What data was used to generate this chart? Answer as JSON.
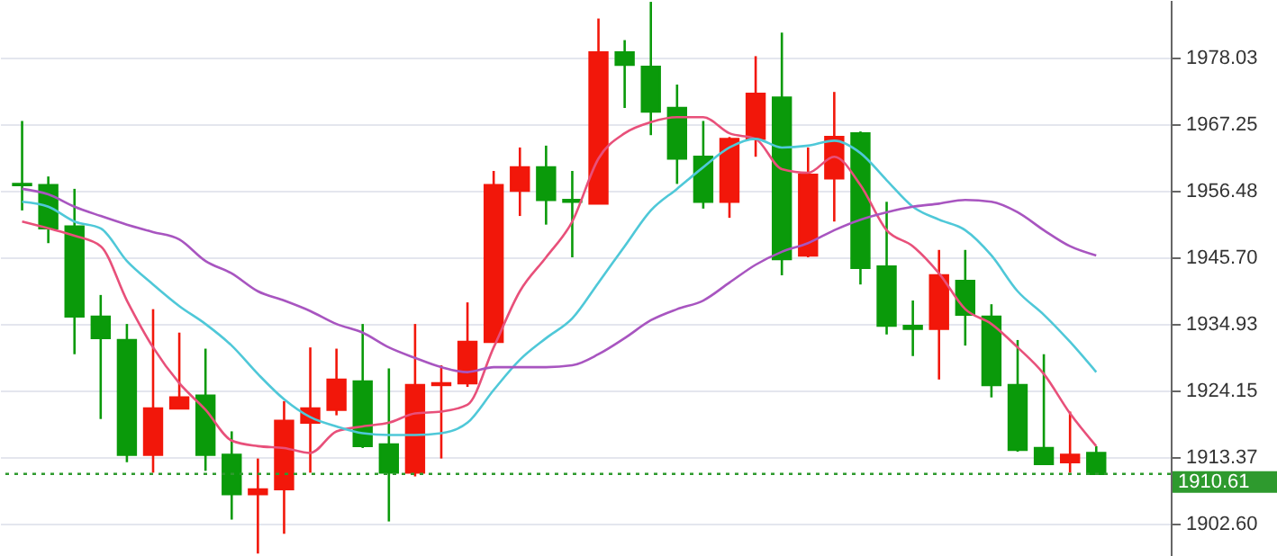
{
  "chart_data": {
    "type": "candlestick",
    "categories": [
      null,
      null,
      null,
      null,
      null,
      null,
      null,
      null,
      null,
      null,
      null,
      null,
      null,
      null,
      null,
      null,
      null,
      null,
      null,
      null,
      null,
      null,
      null,
      null,
      null,
      null,
      null,
      null,
      null,
      null,
      null,
      null,
      null,
      null,
      null,
      null,
      null,
      null,
      null,
      null,
      null,
      null
    ],
    "ohlc": [
      [
        1957.6,
        1967.8,
        1953.3,
        1957.4
      ],
      [
        1957.4,
        1958.8,
        1948.0,
        1950.4
      ],
      [
        1950.7,
        1956.8,
        1930.0,
        1936.1
      ],
      [
        1936.1,
        1939.6,
        1919.5,
        1932.6
      ],
      [
        1932.3,
        1934.9,
        1912.5,
        1913.7
      ],
      [
        1913.7,
        1937.3,
        1910.8,
        1921.2
      ],
      [
        1921.2,
        1933.5,
        1921.2,
        1923.0
      ],
      [
        1923.3,
        1930.9,
        1911.1,
        1913.7
      ],
      [
        1913.7,
        1917.5,
        1903.2,
        1907.3
      ],
      [
        1907.3,
        1913.1,
        1897.7,
        1908.1
      ],
      [
        1908.1,
        1922.4,
        1900.9,
        1919.2
      ],
      [
        1918.9,
        1931.1,
        1910.8,
        1921.2
      ],
      [
        1921.0,
        1930.9,
        1920.1,
        1925.9
      ],
      [
        1925.6,
        1934.9,
        1914.8,
        1915.1
      ],
      [
        1915.4,
        1927.7,
        1902.9,
        1910.8
      ],
      [
        1910.8,
        1934.9,
        1910.2,
        1925.0
      ],
      [
        1925.0,
        1928.2,
        1913.1,
        1925.3
      ],
      [
        1925.3,
        1938.4,
        1924.7,
        1932.0
      ],
      [
        1932.0,
        1959.7,
        1932.0,
        1957.4
      ],
      [
        1956.5,
        1963.5,
        1952.4,
        1960.3
      ],
      [
        1960.3,
        1963.8,
        1951.0,
        1955.0
      ],
      [
        1955.0,
        1959.7,
        1945.7,
        1954.7
      ],
      [
        1954.4,
        1984.4,
        1954.4,
        1978.9
      ],
      [
        1978.9,
        1980.9,
        1969.9,
        1976.9
      ],
      [
        1976.6,
        1987.1,
        1965.5,
        1969.3
      ],
      [
        1969.9,
        1973.7,
        1957.6,
        1961.7
      ],
      [
        1962.0,
        1967.8,
        1953.6,
        1954.7
      ],
      [
        1954.7,
        1965.2,
        1952.1,
        1964.9
      ],
      [
        1964.9,
        1978.3,
        1962.0,
        1972.2
      ],
      [
        1971.6,
        1982.1,
        1942.8,
        1945.4
      ],
      [
        1946.0,
        1963.5,
        1945.7,
        1959.1
      ],
      [
        1958.5,
        1972.5,
        1951.5,
        1965.2
      ],
      [
        1965.8,
        1966.1,
        1941.3,
        1944.0
      ],
      [
        1944.2,
        1954.7,
        1933.2,
        1934.6
      ],
      [
        1934.6,
        1938.7,
        1929.7,
        1934.1
      ],
      [
        1934.1,
        1946.9,
        1925.9,
        1942.8
      ],
      [
        1941.9,
        1946.9,
        1931.4,
        1936.4
      ],
      [
        1936.1,
        1938.1,
        1923.0,
        1925.0
      ],
      [
        1925.0,
        1932.3,
        1914.2,
        1914.5
      ],
      [
        1914.8,
        1930.0,
        1912.2,
        1912.2
      ],
      [
        1912.5,
        1920.7,
        1910.8,
        1913.7
      ],
      [
        1914.0,
        1915.1,
        1910.6,
        1910.61
      ]
    ],
    "colors": [
      "#0a9a0a",
      "#0a9a0a",
      "#0a9a0a",
      "#0a9a0a",
      "#0a9a0a",
      "#f2170a",
      "#f2170a",
      "#0a9a0a",
      "#0a9a0a",
      "#f2170a",
      "#f2170a",
      "#f2170a",
      "#f2170a",
      "#0a9a0a",
      "#0a9a0a",
      "#f2170a",
      "#f2170a",
      "#f2170a",
      "#f2170a",
      "#f2170a",
      "#0a9a0a",
      "#0a9a0a",
      "#f2170a",
      "#0a9a0a",
      "#0a9a0a",
      "#0a9a0a",
      "#0a9a0a",
      "#f2170a",
      "#f2170a",
      "#0a9a0a",
      "#f2170a",
      "#f2170a",
      "#0a9a0a",
      "#0a9a0a",
      "#0a9a0a",
      "#f2170a",
      "#0a9a0a",
      "#0a9a0a",
      "#0a9a0a",
      "#0a9a0a",
      "#f2170a",
      "#0a9a0a"
    ],
    "series": [
      {
        "type": "line",
        "color": "#e8507a",
        "values": [
          1951.5,
          1950.4,
          1949.2,
          1947.5,
          1938.7,
          1931.1,
          1925.3,
          1921.0,
          1916.0,
          1915.1,
          1914.8,
          1914.0,
          1917.5,
          1918.3,
          1918.9,
          1920.4,
          1920.7,
          1921.8,
          1931.1,
          1940.2,
          1945.7,
          1951.5,
          1961.7,
          1965.8,
          1967.6,
          1968.4,
          1968.4,
          1965.8,
          1964.9,
          1960.0,
          1959.4,
          1962.0,
          1957.4,
          1950.1,
          1947.5,
          1943.1,
          1937.3,
          1934.9,
          1931.1,
          1926.8,
          1920.4,
          1915.1
        ]
      },
      {
        "type": "line",
        "color": "#4fc8d8",
        "values": [
          1954.7,
          1953.9,
          1951.5,
          1950.4,
          1945.1,
          1941.3,
          1937.8,
          1934.9,
          1931.4,
          1926.8,
          1922.7,
          1919.8,
          1918.3,
          1917.2,
          1916.9,
          1916.9,
          1917.2,
          1918.9,
          1924.2,
          1929.1,
          1932.6,
          1935.8,
          1941.6,
          1947.5,
          1953.3,
          1956.8,
          1960.3,
          1963.5,
          1964.9,
          1963.5,
          1963.8,
          1964.6,
          1962.6,
          1958.2,
          1953.9,
          1951.8,
          1950.1,
          1946.0,
          1940.2,
          1936.4,
          1932.0,
          1927.1
        ]
      },
      {
        "type": "line",
        "color": "#a855c0",
        "values": [
          1956.8,
          1955.9,
          1953.9,
          1952.4,
          1951.0,
          1949.8,
          1948.6,
          1945.1,
          1943.1,
          1940.2,
          1938.7,
          1937.0,
          1934.9,
          1933.5,
          1931.1,
          1929.4,
          1927.9,
          1927.1,
          1927.9,
          1927.9,
          1927.9,
          1928.2,
          1930.0,
          1932.6,
          1935.5,
          1937.3,
          1938.7,
          1941.6,
          1944.5,
          1946.6,
          1948.0,
          1950.1,
          1951.8,
          1953.0,
          1953.9,
          1954.4,
          1955.0,
          1954.7,
          1953.0,
          1950.1,
          1947.5,
          1946.0
        ]
      }
    ],
    "ylim": [
      1897.3,
      1987.4
    ],
    "yticks": [
      {
        "value": 1902.6,
        "label": "1902.60"
      },
      1913.37,
      1924.15,
      1934.93,
      {
        "value": 1945.7,
        "label": "1945.70"
      },
      1956.48,
      1967.25,
      1978.03
    ],
    "grid": "y",
    "ref_lines": [
      {
        "axis": "y",
        "value": 1910.61,
        "label": "1910.61",
        "color": "#2e9a2e",
        "line_style": "dotted"
      }
    ]
  }
}
